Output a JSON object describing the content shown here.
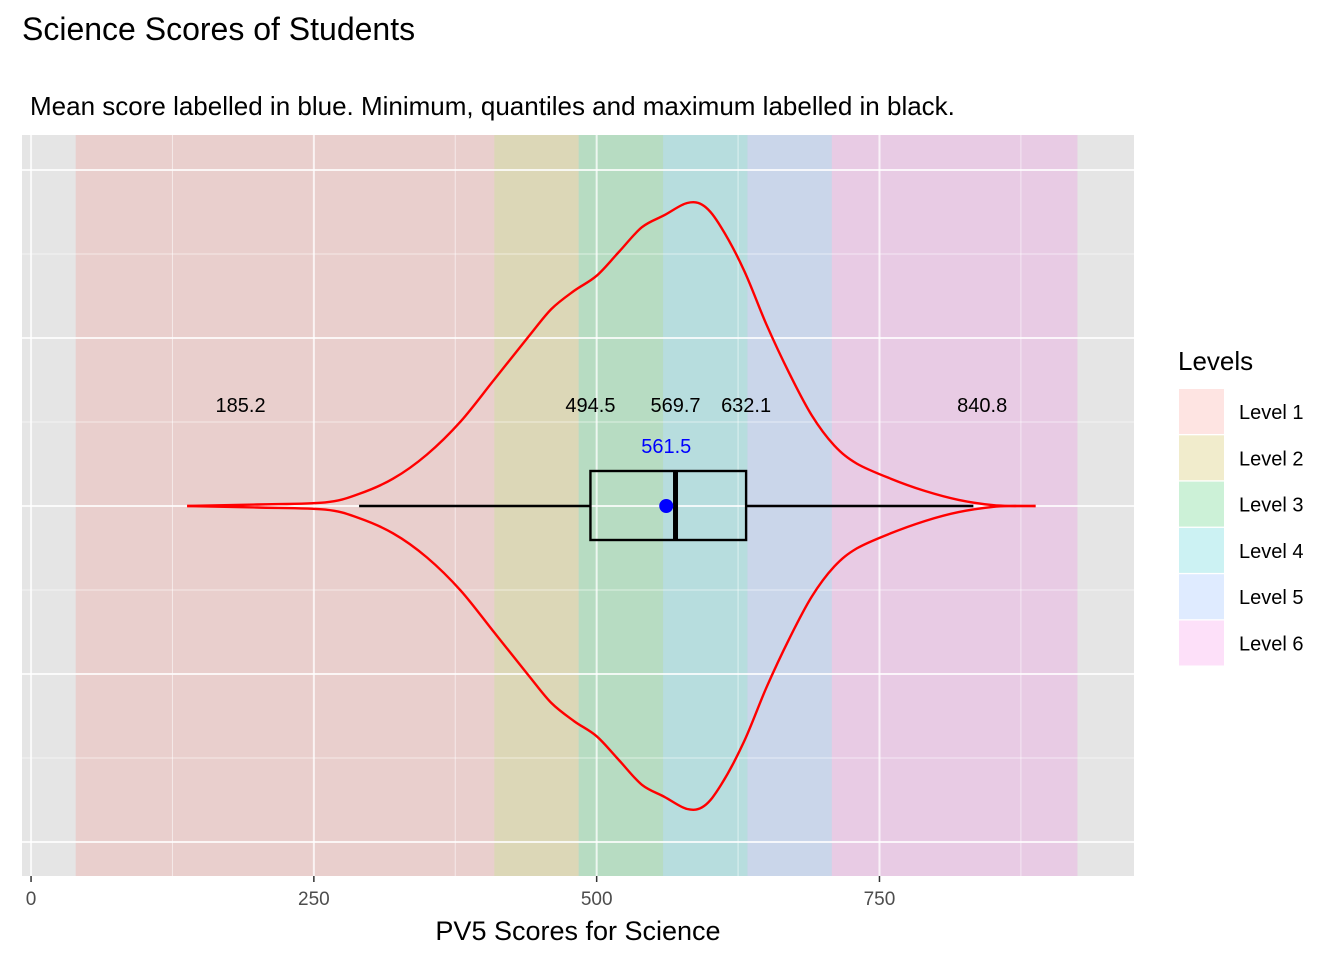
{
  "chart_data": {
    "type": "violin",
    "title": "Science Scores of Students",
    "subtitle": "Mean score labelled in blue. Minimum, quantiles and maximum labelled in black.",
    "xlabel": "PV5 Scores for Science",
    "ylabel": "",
    "xlim": [
      -8,
      975
    ],
    "x_ticks": [
      0,
      250,
      500,
      750
    ],
    "x_tick_labels": [
      "0",
      "250",
      "500",
      "750"
    ],
    "grid": true,
    "legend_title": "Levels",
    "legend_position": "right",
    "levels": [
      {
        "name": "Level 1",
        "from": 39.5,
        "to": 409.5,
        "color": "#F8766D"
      },
      {
        "name": "Level 2",
        "from": 409.5,
        "to": 484.1,
        "color": "#B79F00"
      },
      {
        "name": "Level 3",
        "from": 484.1,
        "to": 558.7,
        "color": "#00BA38"
      },
      {
        "name": "Level 4",
        "from": 558.7,
        "to": 633.3,
        "color": "#00BFC4"
      },
      {
        "name": "Level 5",
        "from": 633.3,
        "to": 707.9,
        "color": "#619CFF"
      },
      {
        "name": "Level 6",
        "from": 707.9,
        "to": 925.0,
        "color": "#F564E3"
      }
    ],
    "band_opacity": 0.2,
    "violin": {
      "color": "#FF0000",
      "scores": [
        138,
        200,
        260,
        290,
        320,
        350,
        380,
        410,
        440,
        460,
        480,
        500,
        520,
        540,
        560,
        580,
        595,
        610,
        630,
        650,
        670,
        690,
        710,
        730,
        760,
        790,
        820,
        850,
        870,
        888
      ],
      "relative_density": [
        0.0,
        0.005,
        0.012,
        0.04,
        0.09,
        0.17,
        0.28,
        0.42,
        0.56,
        0.65,
        0.71,
        0.76,
        0.84,
        0.92,
        0.96,
        1.0,
        0.99,
        0.92,
        0.78,
        0.6,
        0.44,
        0.3,
        0.2,
        0.14,
        0.09,
        0.05,
        0.02,
        0.003,
        0.0,
        0.0
      ]
    },
    "boxplot": {
      "whisker_low": 290,
      "q1": 494.5,
      "median": 569.7,
      "q3": 632.1,
      "whisker_high": 833,
      "color": "#000000"
    },
    "mean": {
      "value": 561.5,
      "label": "561.5",
      "color": "#0000FF"
    },
    "stat_labels": [
      {
        "value": 185.2,
        "label": "185.2"
      },
      {
        "value": 494.5,
        "label": "494.5"
      },
      {
        "value": 569.7,
        "label": "569.7"
      },
      {
        "value": 632.1,
        "label": "632.1"
      },
      {
        "value": 840.8,
        "label": "840.8"
      }
    ],
    "colors": {
      "panel_background": "#E5E5E5",
      "grid": "#FFFFFF",
      "tick_text": "#4D4D4D"
    }
  }
}
